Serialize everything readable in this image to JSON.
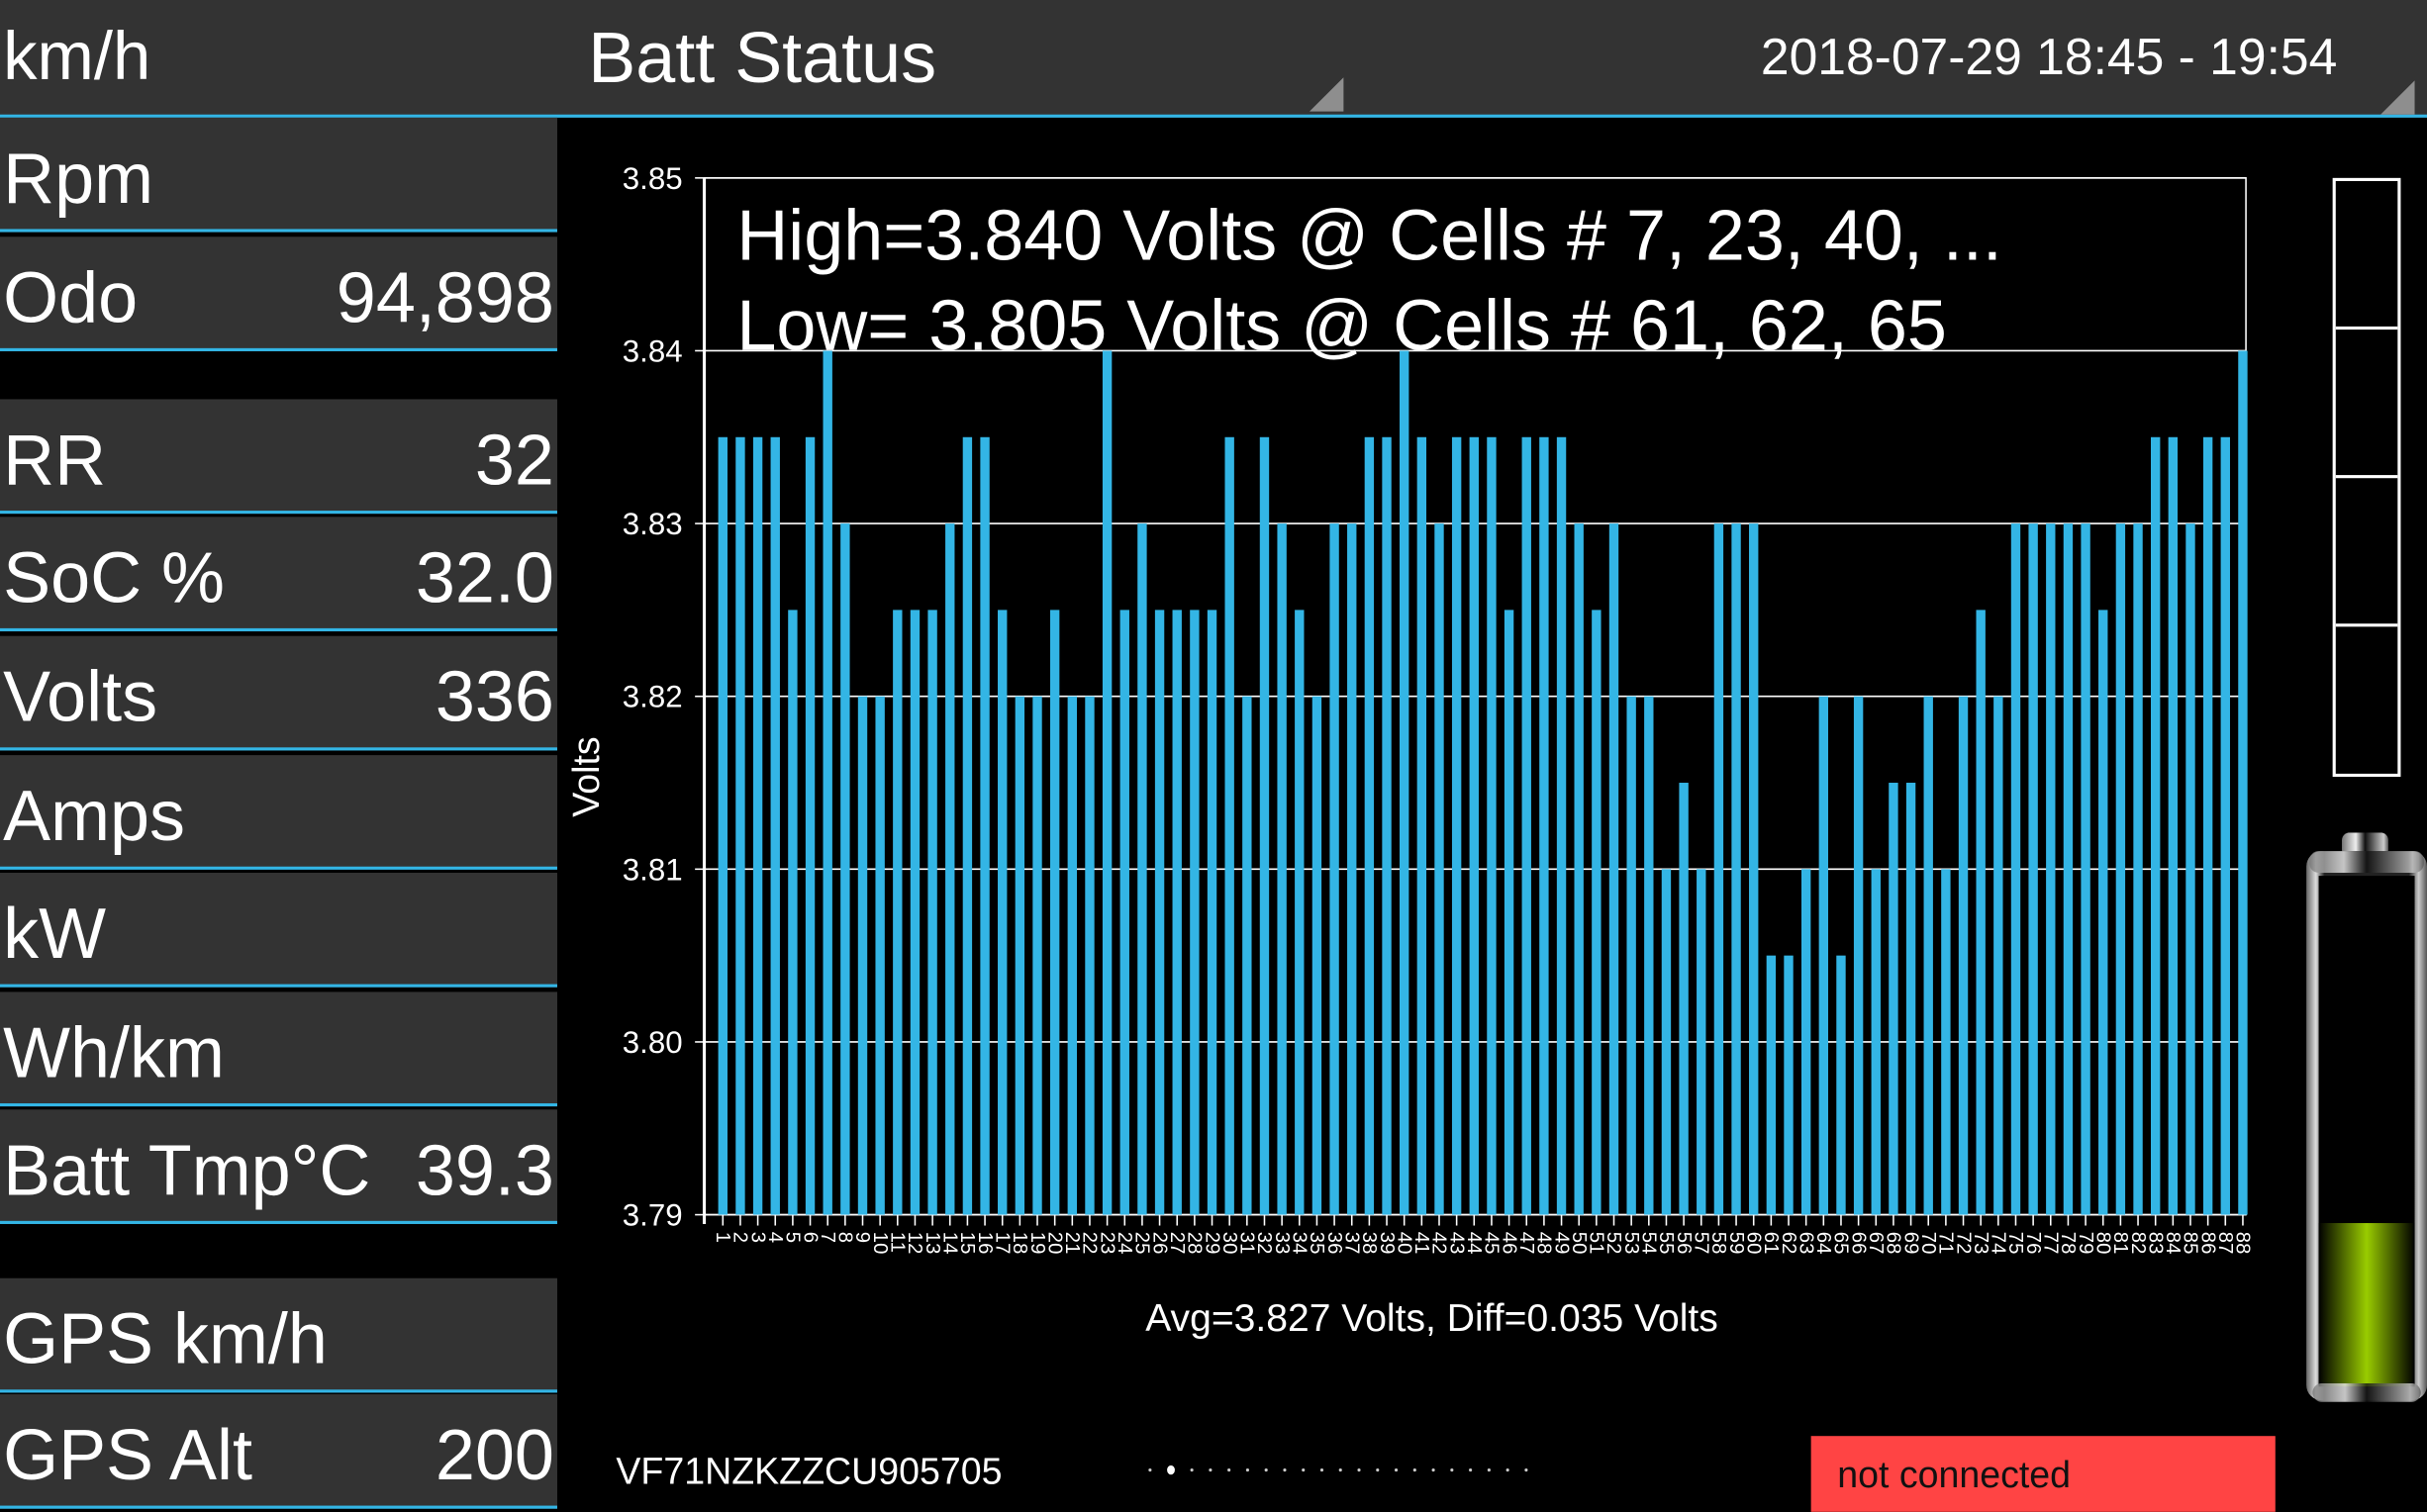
{
  "header": {
    "speed_unit": "km/h",
    "title": "Batt Status",
    "datetime_range": "2018-07-29 18:45 - 19:54"
  },
  "left_panel": {
    "rows": [
      {
        "label": "Rpm",
        "value": ""
      },
      {
        "label": "Odo",
        "value": "94,898"
      },
      {
        "label": "RR",
        "value": "32"
      },
      {
        "label": "SoC %",
        "value": "32.0"
      },
      {
        "label": "Volts",
        "value": "336"
      },
      {
        "label": "Amps",
        "value": ""
      },
      {
        "label": "kW",
        "value": ""
      },
      {
        "label": "Wh/km",
        "value": ""
      },
      {
        "label": "Batt Tmp°C",
        "value": "39.3"
      },
      {
        "label": "GPS km/h",
        "value": ""
      },
      {
        "label": "GPS Alt",
        "value": "200"
      }
    ]
  },
  "chart_data": {
    "type": "bar",
    "title_lines": [
      "High=3.840 Volts @ Cells # 7, 23, 40,  ...",
      "Low= 3.805 Volts @ Cells # 61, 62, 65"
    ],
    "ylabel": "Volts",
    "xlabel": "Avg=3.827 Volts, Diff=0.035 Volts",
    "ylim": [
      3.79,
      3.85
    ],
    "yticks": [
      "3.79",
      "3.80",
      "3.81",
      "3.82",
      "3.83",
      "3.84",
      "3.85"
    ],
    "grid": true,
    "bar_color": "#33b5e5",
    "categories": [
      1,
      2,
      3,
      4,
      5,
      6,
      7,
      8,
      9,
      10,
      11,
      12,
      13,
      14,
      15,
      16,
      17,
      18,
      19,
      20,
      21,
      22,
      23,
      24,
      25,
      26,
      27,
      28,
      29,
      30,
      31,
      32,
      33,
      34,
      35,
      36,
      37,
      38,
      39,
      40,
      41,
      42,
      43,
      44,
      45,
      46,
      47,
      48,
      49,
      50,
      51,
      52,
      53,
      54,
      55,
      56,
      57,
      58,
      59,
      60,
      61,
      62,
      63,
      64,
      65,
      66,
      67,
      68,
      69,
      70,
      71,
      72,
      73,
      74,
      75,
      76,
      77,
      78,
      79,
      80,
      81,
      82,
      83,
      84,
      85,
      86,
      87,
      88
    ],
    "values": [
      3.835,
      3.835,
      3.835,
      3.835,
      3.825,
      3.835,
      3.84,
      3.83,
      3.82,
      3.82,
      3.825,
      3.825,
      3.825,
      3.83,
      3.835,
      3.835,
      3.825,
      3.82,
      3.82,
      3.825,
      3.82,
      3.82,
      3.84,
      3.825,
      3.83,
      3.825,
      3.825,
      3.825,
      3.825,
      3.835,
      3.82,
      3.835,
      3.83,
      3.825,
      3.82,
      3.83,
      3.83,
      3.835,
      3.835,
      3.84,
      3.835,
      3.83,
      3.835,
      3.835,
      3.835,
      3.825,
      3.835,
      3.835,
      3.835,
      3.83,
      3.825,
      3.83,
      3.82,
      3.82,
      3.81,
      3.815,
      3.81,
      3.83,
      3.83,
      3.83,
      3.805,
      3.805,
      3.81,
      3.82,
      3.805,
      3.82,
      3.81,
      3.815,
      3.815,
      3.82,
      3.81,
      3.82,
      3.825,
      3.82,
      3.83,
      3.83,
      3.83,
      3.83,
      3.83,
      3.825,
      3.83,
      3.83,
      3.835,
      3.835,
      3.83,
      3.835,
      3.835,
      3.84
    ]
  },
  "battery": {
    "segment_count": 4,
    "segments_lit": 0,
    "fill_fraction": 0.32,
    "fill_color": "#99cc00"
  },
  "footer": {
    "vin": "VF71NZKZZCU905705",
    "page_count": 21,
    "active_page": 2,
    "connection_status": "not connected",
    "status_color": "#ff4444"
  }
}
